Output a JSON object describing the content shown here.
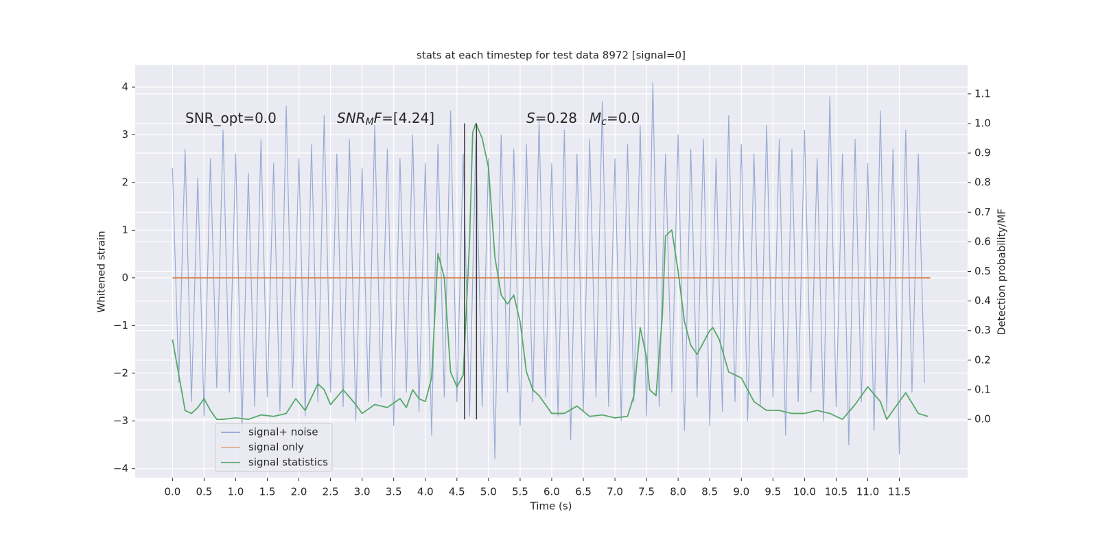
{
  "chart_data": {
    "type": "line",
    "title": "stats at each timestep for test data 8972 [signal=0]",
    "xlabel": "Time (s)",
    "ylabel": "Whitened strain",
    "y2label": "Detection probability/MF",
    "xlim": [
      -0.59,
      12.58
    ],
    "ylim": [
      -4.19,
      4.46
    ],
    "y2lim": [
      -0.197,
      1.197
    ],
    "xticks": [
      {
        "value": 0,
        "label": "0.0"
      },
      0.5,
      {
        "value": 1,
        "label": "1.0"
      },
      1.5,
      {
        "value": 2,
        "label": "2.0"
      },
      2.5,
      {
        "value": 3,
        "label": "3.0"
      },
      3.5,
      {
        "value": 4,
        "label": "4.0"
      },
      4.5,
      {
        "value": 5,
        "label": "5.0"
      },
      5.5,
      {
        "value": 6,
        "label": "6.0"
      },
      6.5,
      {
        "value": 7,
        "label": "7.0"
      },
      7.5,
      {
        "value": 8,
        "label": "8.0"
      },
      8.5,
      {
        "value": 9,
        "label": "9.0"
      },
      9.5,
      {
        "value": 10,
        "label": "10.0"
      },
      10.5,
      {
        "value": 11,
        "label": "11.0"
      },
      11.5
    ],
    "yticks": [
      {
        "value": -4,
        "label": "−4"
      },
      {
        "value": -3,
        "label": "−3"
      },
      {
        "value": -2,
        "label": "−2"
      },
      {
        "value": -1,
        "label": "−1"
      },
      0,
      1,
      2,
      3,
      4
    ],
    "y2ticks": [
      {
        "value": 0,
        "label": "0.0"
      },
      0.1,
      0.2,
      0.3,
      0.4,
      0.5,
      0.6,
      0.7,
      0.8,
      0.9,
      {
        "value": 1,
        "label": "1.0"
      },
      1.1
    ],
    "grid": true,
    "legend_loc": "lower left",
    "series": [
      {
        "name": "signal+ noise",
        "color": "#8fa4cf",
        "x": [
          0,
          0.1,
          0.2,
          0.3,
          0.4,
          0.5,
          0.6,
          0.7,
          0.8,
          0.9,
          1,
          1.1,
          1.2,
          1.3,
          1.4,
          1.5,
          1.6,
          1.7,
          1.8,
          1.9,
          2,
          2.1,
          2.2,
          2.3,
          2.4,
          2.5,
          2.6,
          2.7,
          2.8,
          2.9,
          3,
          3.1,
          3.2,
          3.3,
          3.4,
          3.5,
          3.6,
          3.7,
          3.8,
          3.9,
          4,
          4.1,
          4.2,
          4.3,
          4.4,
          4.5,
          4.6,
          4.7,
          4.8,
          4.9,
          5,
          5.1,
          5.2,
          5.3,
          5.4,
          5.5,
          5.6,
          5.7,
          5.8,
          5.9,
          6,
          6.1,
          6.2,
          6.3,
          6.4,
          6.5,
          6.6,
          6.7,
          6.8,
          6.9,
          7,
          7.1,
          7.2,
          7.3,
          7.4,
          7.5,
          7.6,
          7.7,
          7.8,
          7.9,
          8,
          8.1,
          8.2,
          8.3,
          8.4,
          8.5,
          8.6,
          8.7,
          8.8,
          8.9,
          9,
          9.1,
          9.2,
          9.3,
          9.4,
          9.5,
          9.6,
          9.7,
          9.8,
          9.9,
          10,
          10.1,
          10.2,
          10.3,
          10.4,
          10.5,
          10.6,
          10.7,
          10.8,
          10.9,
          11,
          11.1,
          11.2,
          11.3,
          11.4,
          11.5,
          11.6,
          11.7,
          11.8,
          11.9
        ],
        "values": [
          2.3,
          -2.2,
          2.7,
          -2.6,
          2.1,
          -2.9,
          2.5,
          -2.3,
          3.1,
          -2.4,
          2.6,
          -3.2,
          2.2,
          -2.7,
          2.9,
          -2.5,
          2.4,
          -2.8,
          3.6,
          -2.3,
          2.5,
          -2.9,
          2.8,
          -2.6,
          3.4,
          -2.4,
          2.6,
          -2.7,
          2.9,
          -3.0,
          2.3,
          -2.6,
          3.2,
          -2.5,
          2.7,
          -3.1,
          2.5,
          -2.4,
          3.0,
          -2.8,
          2.4,
          -3.3,
          2.8,
          -2.5,
          3.5,
          -2.6,
          2.6,
          -2.9,
          2.9,
          -2.7,
          2.5,
          -3.8,
          3.0,
          -2.4,
          2.7,
          -3.1,
          2.8,
          -2.6,
          3.3,
          -2.5,
          2.4,
          -2.9,
          3.1,
          -3.4,
          2.6,
          -2.8,
          2.9,
          -2.5,
          3.7,
          -2.7,
          2.5,
          -3.0,
          2.8,
          -2.6,
          3.2,
          -2.9,
          4.1,
          -2.7,
          2.6,
          -2.4,
          3.0,
          -3.2,
          2.7,
          -2.5,
          2.9,
          -3.1,
          2.5,
          -2.8,
          3.4,
          -2.6,
          2.8,
          -3.0,
          2.6,
          -2.7,
          3.2,
          -2.5,
          2.9,
          -3.3,
          2.7,
          -2.6,
          3.1,
          -2.4,
          2.5,
          -3.0,
          3.8,
          -2.7,
          2.6,
          -3.5,
          2.9,
          -2.6,
          2.4,
          -3.2,
          3.5,
          -2.8,
          2.7,
          -3.7,
          3.1,
          -2.4,
          2.6,
          -2.2
        ]
      },
      {
        "name": "signal only",
        "color": "#dd8452",
        "x": [
          0,
          11.99
        ],
        "values": [
          0,
          0
        ]
      },
      {
        "name": "signal statistics",
        "color": "#55a868",
        "axis": "y2",
        "x": [
          0,
          0.1,
          0.2,
          0.3,
          0.4,
          0.5,
          0.6,
          0.7,
          0.8,
          1.0,
          1.2,
          1.4,
          1.6,
          1.8,
          1.95,
          2.1,
          2.3,
          2.4,
          2.5,
          2.7,
          2.9,
          3.0,
          3.2,
          3.4,
          3.6,
          3.7,
          3.8,
          3.9,
          4.0,
          4.1,
          4.2,
          4.3,
          4.4,
          4.5,
          4.6,
          4.7,
          4.75,
          4.8,
          4.9,
          5.0,
          5.1,
          5.2,
          5.3,
          5.4,
          5.5,
          5.6,
          5.7,
          5.8,
          5.9,
          6.0,
          6.2,
          6.4,
          6.6,
          6.8,
          7.0,
          7.2,
          7.3,
          7.4,
          7.5,
          7.55,
          7.65,
          7.75,
          7.8,
          7.9,
          8.0,
          8.1,
          8.2,
          8.3,
          8.5,
          8.55,
          8.65,
          8.8,
          9.0,
          9.1,
          9.2,
          9.4,
          9.6,
          9.8,
          10.0,
          10.2,
          10.4,
          10.6,
          10.8,
          11.0,
          11.2,
          11.3,
          11.4,
          11.6,
          11.8,
          11.95
        ],
        "values": [
          0.27,
          0.15,
          0.03,
          0.02,
          0.04,
          0.07,
          0.03,
          0.0,
          0.0,
          0.005,
          0.0,
          0.015,
          0.01,
          0.02,
          0.07,
          0.03,
          0.12,
          0.1,
          0.05,
          0.1,
          0.05,
          0.02,
          0.05,
          0.04,
          0.07,
          0.04,
          0.1,
          0.07,
          0.06,
          0.14,
          0.56,
          0.48,
          0.16,
          0.11,
          0.15,
          0.6,
          0.97,
          1.0,
          0.95,
          0.85,
          0.55,
          0.42,
          0.39,
          0.42,
          0.33,
          0.16,
          0.1,
          0.08,
          0.05,
          0.02,
          0.02,
          0.045,
          0.01,
          0.015,
          0.005,
          0.01,
          0.08,
          0.31,
          0.21,
          0.1,
          0.08,
          0.35,
          0.62,
          0.64,
          0.5,
          0.33,
          0.25,
          0.22,
          0.3,
          0.31,
          0.27,
          0.16,
          0.14,
          0.1,
          0.06,
          0.03,
          0.03,
          0.02,
          0.02,
          0.03,
          0.02,
          0.0,
          0.05,
          0.11,
          0.06,
          0.0,
          0.03,
          0.09,
          0.02,
          0.01
        ]
      }
    ],
    "vlines": {
      "x": [
        4.62,
        4.81
      ],
      "range": [
        0,
        1.0
      ],
      "color": "#3a3a3a",
      "axis": "y2"
    },
    "annotations": [
      {
        "parts": [
          {
            "text": "SNR_opt=0.0"
          }
        ]
      },
      {
        "parts": [
          {
            "text": "SNR",
            "style": "italic"
          },
          {
            "text": "M",
            "style": "sub"
          },
          {
            "text": "F",
            "style": "italic"
          },
          {
            "text": "=[4.24]"
          }
        ]
      },
      {
        "parts": [
          {
            "text": "S",
            "style": "italic"
          },
          {
            "text": "=0.28"
          }
        ]
      },
      {
        "parts": [
          {
            "text": "M",
            "style": "italic"
          },
          {
            "text": "c",
            "style": "sub"
          },
          {
            "text": "=0.0"
          }
        ]
      }
    ]
  }
}
